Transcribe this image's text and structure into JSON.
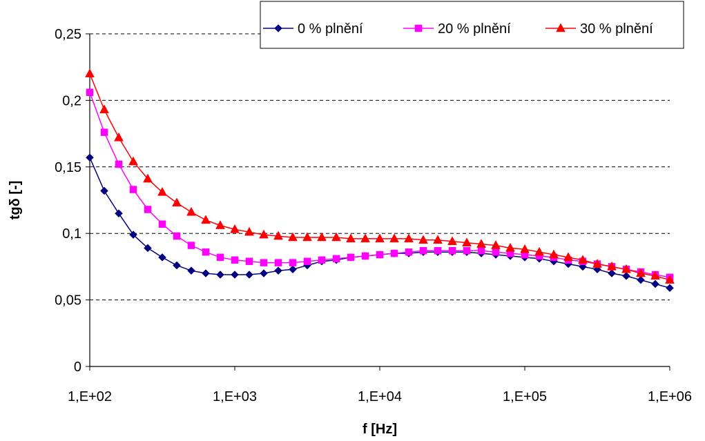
{
  "chart_data": {
    "type": "line",
    "title": "",
    "xlabel": "f [Hz]",
    "ylabel": "tgδ  [-]",
    "x_scale": "log",
    "xlim": [
      100,
      1000000
    ],
    "ylim": [
      0,
      0.25
    ],
    "x_ticks": [
      "1,E+02",
      "1,E+03",
      "1,E+04",
      "1,E+05",
      "1,E+06"
    ],
    "y_ticks": [
      "0",
      "0,05",
      "0,1",
      "0,15",
      "0,2",
      "0,25"
    ],
    "grid": "horizontal dashed",
    "legend_position": "top-right",
    "x": [
      100,
      125.9,
      158.5,
      199.5,
      251.2,
      316.2,
      398.1,
      501.2,
      631,
      794.3,
      1000,
      1259,
      1585,
      1995,
      2512,
      3162,
      3981,
      5012,
      6310,
      7943,
      10000,
      12589,
      15849,
      19953,
      25119,
      31623,
      39811,
      50119,
      63096,
      79433,
      100000,
      125893,
      158489,
      199526,
      251189,
      316228,
      398107,
      501187,
      630957,
      794328,
      1000000
    ],
    "series": [
      {
        "name": "0 % plnění",
        "color": "#000080",
        "marker": "diamond",
        "values": [
          0.157,
          0.132,
          0.115,
          0.099,
          0.089,
          0.082,
          0.076,
          0.072,
          0.07,
          0.069,
          0.069,
          0.069,
          0.07,
          0.072,
          0.073,
          0.076,
          0.079,
          0.08,
          0.082,
          0.083,
          0.084,
          0.085,
          0.085,
          0.086,
          0.086,
          0.086,
          0.086,
          0.085,
          0.084,
          0.083,
          0.082,
          0.081,
          0.079,
          0.077,
          0.075,
          0.073,
          0.07,
          0.068,
          0.065,
          0.062,
          0.059
        ]
      },
      {
        "name": "20 % plnění",
        "color": "#ff00ff",
        "marker": "square",
        "values": [
          0.206,
          0.176,
          0.152,
          0.133,
          0.118,
          0.107,
          0.098,
          0.091,
          0.086,
          0.082,
          0.08,
          0.079,
          0.078,
          0.078,
          0.078,
          0.079,
          0.08,
          0.081,
          0.082,
          0.083,
          0.084,
          0.085,
          0.086,
          0.087,
          0.087,
          0.087,
          0.087,
          0.087,
          0.086,
          0.085,
          0.084,
          0.083,
          0.082,
          0.08,
          0.079,
          0.077,
          0.075,
          0.073,
          0.071,
          0.069,
          0.067
        ]
      },
      {
        "name": "30 % plnění",
        "color": "#ff0000",
        "marker": "triangle",
        "values": [
          0.22,
          0.193,
          0.172,
          0.154,
          0.141,
          0.131,
          0.123,
          0.116,
          0.11,
          0.106,
          0.103,
          0.101,
          0.099,
          0.098,
          0.097,
          0.097,
          0.097,
          0.097,
          0.096,
          0.096,
          0.096,
          0.096,
          0.096,
          0.095,
          0.095,
          0.094,
          0.093,
          0.092,
          0.091,
          0.089,
          0.088,
          0.086,
          0.084,
          0.082,
          0.08,
          0.077,
          0.075,
          0.073,
          0.07,
          0.068,
          0.065
        ]
      }
    ]
  }
}
